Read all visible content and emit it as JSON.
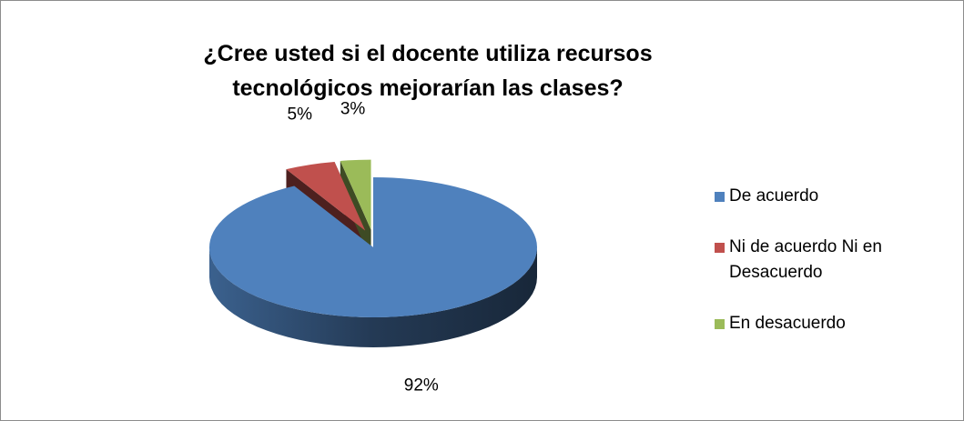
{
  "chart_data": {
    "type": "pie",
    "title": "¿Cree usted si el docente utiliza recursos tecnológicos mejorarían las clases?",
    "categories": [
      "De acuerdo",
      "Ni de acuerdo Ni en Desacuerdo",
      "En desacuerdo"
    ],
    "values": [
      92,
      5,
      3
    ],
    "value_labels": [
      "92%",
      "5%",
      "3%"
    ],
    "colors": [
      "#4f81bd",
      "#c0504d",
      "#9bbb59"
    ],
    "legend": "right"
  }
}
